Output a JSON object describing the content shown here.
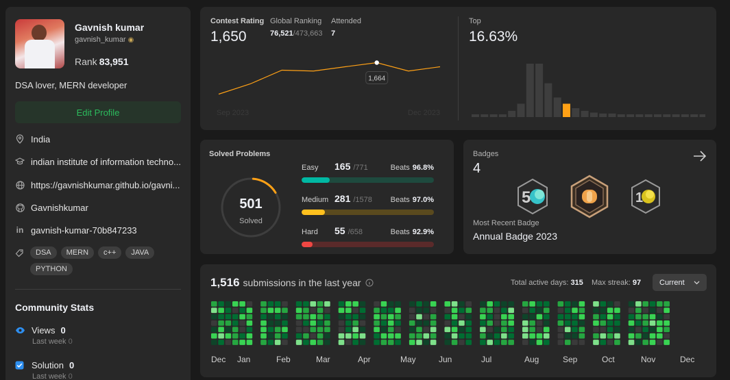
{
  "profile": {
    "name": "Gavnish kumar",
    "handle": "gavnish_kumar",
    "rank_label": "Rank",
    "rank_value": "83,951",
    "bio": "DSA lover, MERN developer",
    "edit_label": "Edit Profile",
    "location": "India",
    "school": "indian institute of information techno...",
    "website": "https://gavnishkumar.github.io/gavni...",
    "github": "Gavnishkumar",
    "linkedin": "gavnish-kumar-70b847233",
    "skills": [
      "DSA",
      "MERN",
      "c++",
      "JAVA",
      "PYTHON"
    ]
  },
  "community": {
    "title": "Community Stats",
    "views_label": "Views",
    "views_value": "0",
    "views_sub": "Last week",
    "views_sub_value": "0",
    "solution_label": "Solution",
    "solution_value": "0",
    "solution_sub": "Last week",
    "solution_sub_value": "0"
  },
  "contest": {
    "rating_label": "Contest Rating",
    "rating_value": "1,650",
    "ranking_label": "Global Ranking",
    "ranking_value": "76,521",
    "ranking_total": "/473,663",
    "attended_label": "Attended",
    "attended_value": "7",
    "tooltip": "1,664",
    "start_label": "Sep 2023",
    "end_label": "Dec 2023",
    "top_label": "Top",
    "top_value": "16.63%"
  },
  "rating_chart": {
    "type": "line",
    "values": [
      1480,
      1540,
      1620,
      1615,
      1640,
      1664,
      1615,
      1640
    ],
    "highlight_index": 5
  },
  "top_histogram": {
    "type": "bar",
    "values": [
      3,
      3,
      3,
      3,
      7,
      15,
      60,
      60,
      38,
      22,
      15,
      10,
      7,
      5,
      4,
      4,
      3,
      3,
      3,
      3,
      3,
      3,
      3,
      3,
      3,
      3
    ],
    "highlight_index": 10
  },
  "solved": {
    "title": "Solved Problems",
    "total": "501",
    "total_label": "Solved",
    "easy": {
      "label": "Easy",
      "count": "165",
      "total": "/771",
      "beats_label": "Beats",
      "beats": "96.8%",
      "ratio": 0.214
    },
    "medium": {
      "label": "Medium",
      "count": "281",
      "total": "/1578",
      "beats_label": "Beats",
      "beats": "97.0%",
      "ratio": 0.178
    },
    "hard": {
      "label": "Hard",
      "count": "55",
      "total": "/658",
      "beats_label": "Beats",
      "beats": "92.9%",
      "ratio": 0.084
    },
    "colors": {
      "easy": "#00b8a3",
      "medium": "#ffc01e",
      "hard": "#ef4743"
    }
  },
  "badges": {
    "title": "Badges",
    "count": "4",
    "recent_label": "Most Recent Badge",
    "recent_name": "Annual Badge 2023",
    "items": [
      "50-days-badge-icon",
      "annual-2023-badge-icon",
      "100-days-badge-icon"
    ]
  },
  "submissions": {
    "count": "1,516",
    "label": "submissions in the last year",
    "active_label": "Total active days:",
    "active_value": "315",
    "streak_label": "Max streak:",
    "streak_value": "97",
    "filter": "Current",
    "months": [
      "Dec",
      "Jan",
      "Feb",
      "Mar",
      "Apr",
      "May",
      "Jun",
      "Jul",
      "Aug",
      "Sep",
      "Oct",
      "Nov",
      "Dec"
    ]
  }
}
